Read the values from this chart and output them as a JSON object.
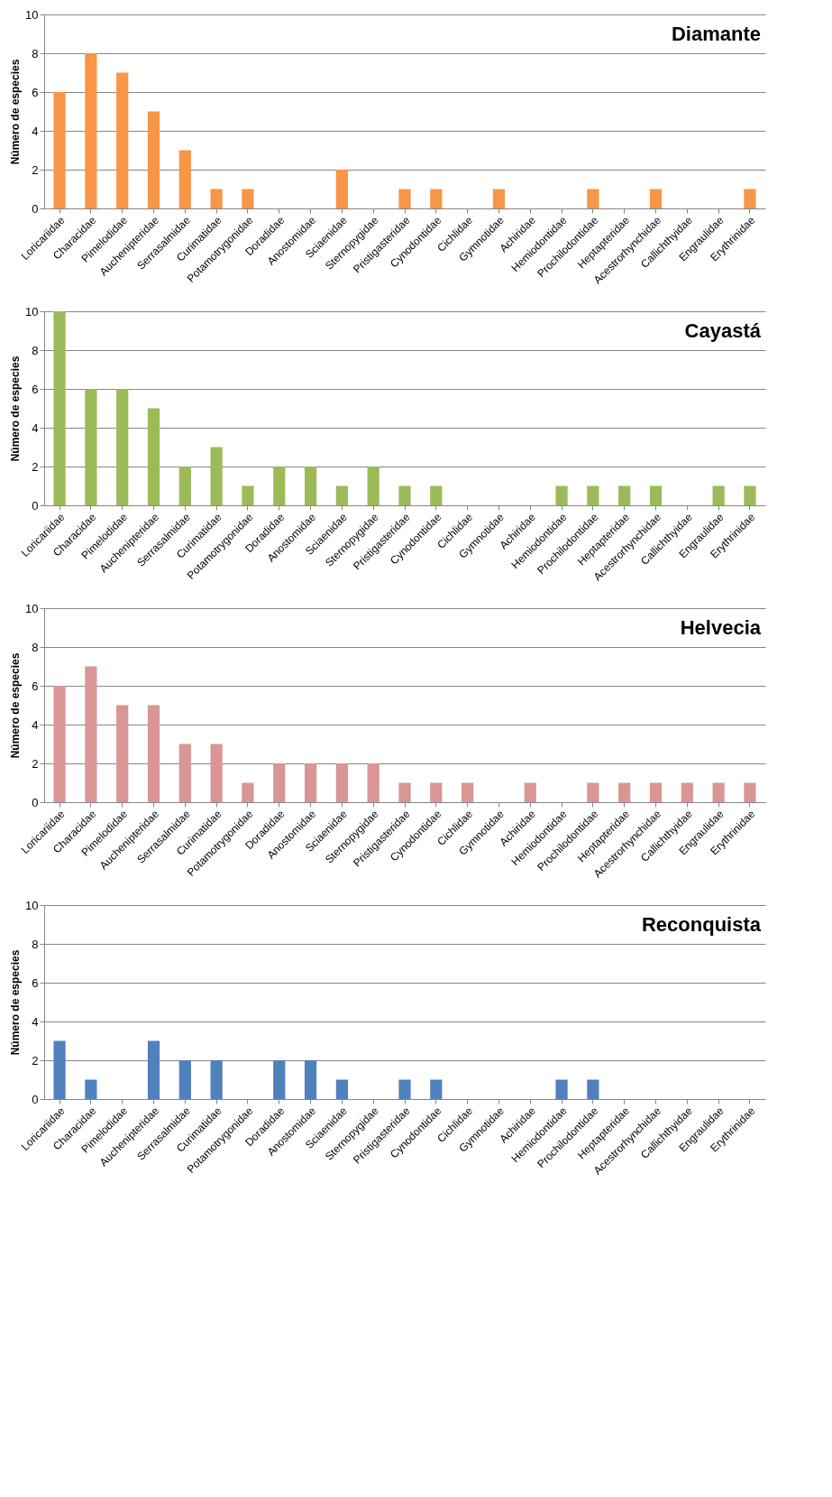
{
  "chart_data": [
    {
      "type": "bar",
      "title": "Diamante",
      "ylabel": "Número de especies",
      "categories": [
        "Loricariidae",
        "Characidae",
        "Pimelodidae",
        "Auchenipteridae",
        "Serrasalmidae",
        "Curimatidae",
        "Potamotrygonidae",
        "Doradidae",
        "Anostomidae",
        "Sciaenidae",
        "Sternopygidae",
        "Pristigasteridae",
        "Cynodontidae",
        "Cichlidae",
        "Gymnotidae",
        "Achiridae",
        "Hemiodontidae",
        "Prochilodontidae",
        "Heptapteridae",
        "Acestrorhynchidae",
        "Callichthyidae",
        "Engraulidae",
        "Erythrinidae"
      ],
      "values": [
        6,
        8,
        7,
        5,
        3,
        1,
        1,
        0,
        0,
        2,
        0,
        1,
        1,
        0,
        1,
        0,
        0,
        1,
        0,
        1,
        0,
        0,
        1
      ],
      "color": "#f79646",
      "ylim": [
        0,
        10
      ],
      "yticks": [
        0,
        2,
        4,
        6,
        8,
        10
      ],
      "grid": "y"
    },
    {
      "type": "bar",
      "title": "Cayastá",
      "ylabel": "Número de especies",
      "categories": [
        "Loricariidae",
        "Characidae",
        "Pimelodidae",
        "Auchenipteridae",
        "Serrasalmidae",
        "Curimatidae",
        "Potamotrygonidae",
        "Doradidae",
        "Anostomidae",
        "Sciaenidae",
        "Sternopygidae",
        "Pristigasteridae",
        "Cynodontidae",
        "Cichlidae",
        "Gymnotidae",
        "Achiridae",
        "Hemiodontidae",
        "Prochilodontidae",
        "Heptapteridae",
        "Acestrorhynchidae",
        "Callichthyidae",
        "Engraulidae",
        "Erythrinidae"
      ],
      "values": [
        10,
        6,
        6,
        5,
        2,
        3,
        1,
        2,
        2,
        1,
        2,
        1,
        1,
        0,
        0,
        0,
        1,
        1,
        1,
        1,
        0,
        1,
        1
      ],
      "color": "#9bbb59",
      "ylim": [
        0,
        10
      ],
      "yticks": [
        0,
        2,
        4,
        6,
        8,
        10
      ],
      "grid": "y"
    },
    {
      "type": "bar",
      "title": "Helvecia",
      "ylabel": "Número de especies",
      "categories": [
        "Loricariidae",
        "Characidae",
        "Pimelodidae",
        "Auchenipteridae",
        "Serrasalmidae",
        "Curimatidae",
        "Potamotrygonidae",
        "Doradidae",
        "Anostomidae",
        "Sciaenidae",
        "Sternopygidae",
        "Pristigasteridae",
        "Cynodontidae",
        "Cichlidae",
        "Gymnotidae",
        "Achiridae",
        "Hemiodontidae",
        "Prochilodontidae",
        "Heptapteridae",
        "Acestrorhynchidae",
        "Callichthyidae",
        "Engraulidae",
        "Erythrinidae"
      ],
      "values": [
        6,
        7,
        5,
        5,
        3,
        3,
        1,
        2,
        2,
        2,
        2,
        1,
        1,
        1,
        0,
        1,
        0,
        1,
        1,
        1,
        1,
        1,
        1
      ],
      "color": "#d99694",
      "ylim": [
        0,
        10
      ],
      "yticks": [
        0,
        2,
        4,
        6,
        8,
        10
      ],
      "grid": "y"
    },
    {
      "type": "bar",
      "title": "Reconquista",
      "ylabel": "Número de especies",
      "categories": [
        "Loricariidae",
        "Characidae",
        "Pimelodidae",
        "Auchenipteridae",
        "Serrasalmidae",
        "Curimatidae",
        "Potamotrygonidae",
        "Doradidae",
        "Anostomidae",
        "Sciaenidae",
        "Sternopygidae",
        "Pristigasteridae",
        "Cynodontidae",
        "Cichlidae",
        "Gymnotidae",
        "Achiridae",
        "Hemiodontidae",
        "Prochilodontidae",
        "Heptapteridae",
        "Acestrorhynchidae",
        "Callichthyidae",
        "Engraulidae",
        "Erythrinidae"
      ],
      "values": [
        3,
        1,
        0,
        3,
        2,
        2,
        0,
        2,
        2,
        1,
        0,
        1,
        1,
        0,
        0,
        0,
        1,
        1,
        0,
        0,
        0,
        0,
        0
      ],
      "color": "#4f81bd",
      "ylim": [
        0,
        10
      ],
      "yticks": [
        0,
        2,
        4,
        6,
        8,
        10
      ],
      "grid": "y"
    }
  ]
}
